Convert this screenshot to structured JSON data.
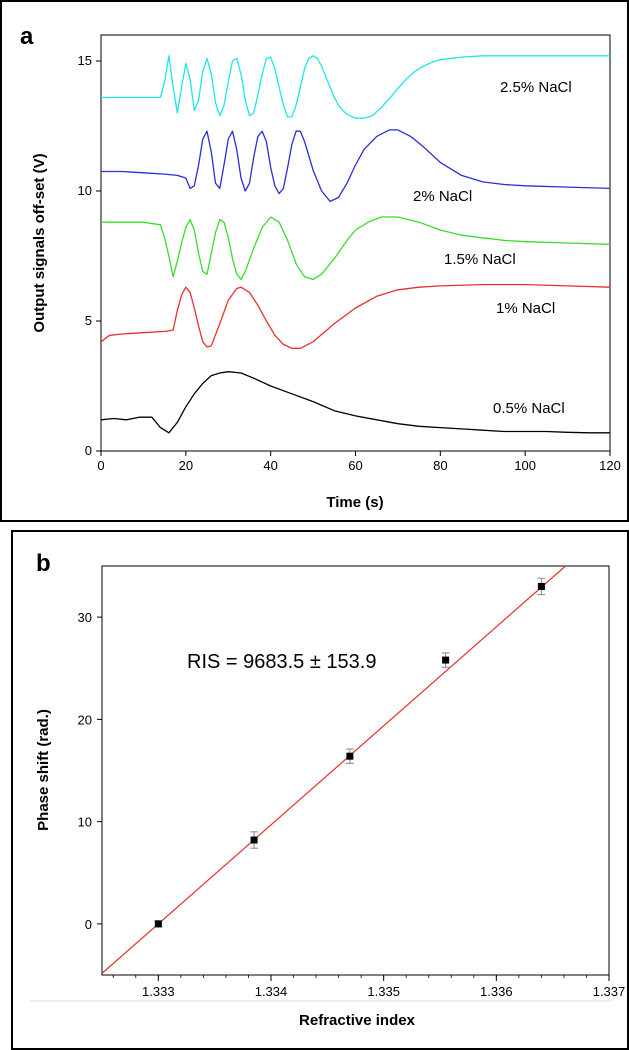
{
  "panels": [
    {
      "letter": "a"
    },
    {
      "letter": "b"
    }
  ],
  "chart_data": [
    {
      "type": "line",
      "title": "",
      "xlabel": "Time (s)",
      "ylabel": "Output signals off-set (V)",
      "xlim": [
        0,
        120
      ],
      "ylim": [
        0,
        16
      ],
      "xticks": [
        0,
        20,
        40,
        60,
        80,
        100,
        120
      ],
      "yticks": [
        0,
        5,
        10,
        15
      ],
      "grid": false,
      "series": [
        {
          "name": "0.5% NaCl",
          "color": "#000000",
          "x": [
            0,
            3,
            6,
            9,
            12,
            14,
            16,
            18,
            20,
            22,
            24,
            26,
            28,
            30,
            33,
            36,
            40,
            45,
            50,
            55,
            60,
            65,
            70,
            75,
            80,
            85,
            90,
            95,
            100,
            105,
            110,
            115,
            120
          ],
          "y": [
            1.2,
            1.25,
            1.2,
            1.3,
            1.3,
            0.9,
            0.7,
            1.1,
            1.7,
            2.2,
            2.6,
            2.9,
            3.0,
            3.05,
            3.0,
            2.8,
            2.5,
            2.2,
            1.9,
            1.55,
            1.35,
            1.2,
            1.05,
            0.95,
            0.9,
            0.85,
            0.8,
            0.75,
            0.75,
            0.75,
            0.72,
            0.7,
            0.7
          ]
        },
        {
          "name": "1% NaCl",
          "color": "#e8302c",
          "x": [
            0,
            2,
            5,
            10,
            15,
            17,
            18,
            19,
            20,
            21,
            22,
            23,
            24,
            25,
            26,
            28,
            30,
            32,
            33,
            35,
            37,
            39,
            41,
            43,
            45,
            47,
            50,
            55,
            60,
            65,
            70,
            75,
            80,
            90,
            100,
            110,
            120
          ],
          "y": [
            4.2,
            4.45,
            4.5,
            4.55,
            4.6,
            4.65,
            5.4,
            6.0,
            6.3,
            6.1,
            5.5,
            4.8,
            4.2,
            4.0,
            4.05,
            4.9,
            5.8,
            6.25,
            6.3,
            6.1,
            5.6,
            5.0,
            4.45,
            4.1,
            3.95,
            3.95,
            4.2,
            4.9,
            5.5,
            5.95,
            6.2,
            6.3,
            6.35,
            6.4,
            6.4,
            6.35,
            6.3
          ]
        },
        {
          "name": "1.5% NaCl",
          "color": "#3adc2a",
          "x": [
            0,
            5,
            10,
            14,
            15,
            16,
            17,
            18,
            19,
            20,
            21,
            22,
            23,
            24,
            25,
            26,
            27,
            28,
            29,
            30,
            31,
            32,
            33,
            34,
            36,
            38,
            40,
            42,
            44,
            46,
            48,
            50,
            52,
            55,
            58,
            60,
            63,
            66,
            70,
            75,
            80,
            85,
            90,
            95,
            100,
            110,
            120
          ],
          "y": [
            8.8,
            8.8,
            8.8,
            8.7,
            8.2,
            7.5,
            6.7,
            7.3,
            8.0,
            8.6,
            8.9,
            8.5,
            7.6,
            6.9,
            6.8,
            7.6,
            8.4,
            8.9,
            8.8,
            8.2,
            7.4,
            6.8,
            6.6,
            6.9,
            7.8,
            8.6,
            9.0,
            8.8,
            8.1,
            7.2,
            6.7,
            6.6,
            6.8,
            7.4,
            8.1,
            8.5,
            8.8,
            9.0,
            9.0,
            8.8,
            8.5,
            8.3,
            8.2,
            8.1,
            8.05,
            8.0,
            7.95
          ]
        },
        {
          "name": "2% NaCl",
          "color": "#2a2ed6",
          "x": [
            0,
            5,
            10,
            15,
            18,
            20,
            21,
            22,
            23,
            24,
            25,
            26,
            27,
            28,
            29,
            30,
            31,
            32,
            33,
            34,
            35,
            36,
            37,
            38,
            39,
            40,
            41,
            42,
            43,
            44,
            45,
            46,
            47,
            48,
            50,
            52,
            54,
            56,
            58,
            60,
            62,
            65,
            68,
            70,
            73,
            76,
            80,
            85,
            90,
            95,
            100,
            110,
            120
          ],
          "y": [
            10.75,
            10.75,
            10.7,
            10.65,
            10.6,
            10.5,
            10.1,
            10.2,
            11.0,
            12.0,
            12.3,
            11.5,
            10.3,
            10.1,
            11.0,
            12.0,
            12.3,
            11.6,
            10.5,
            10.0,
            10.3,
            11.3,
            12.1,
            12.3,
            11.9,
            10.9,
            10.2,
            9.9,
            10.1,
            10.9,
            11.8,
            12.3,
            12.3,
            11.9,
            10.8,
            10.0,
            9.6,
            9.75,
            10.3,
            11.0,
            11.6,
            12.1,
            12.35,
            12.35,
            12.1,
            11.7,
            11.1,
            10.6,
            10.35,
            10.25,
            10.2,
            10.15,
            10.1
          ]
        },
        {
          "name": "2.5% NaCl",
          "color": "#20e6e6",
          "x": [
            0,
            5,
            10,
            13,
            14,
            15,
            16,
            17,
            18,
            19,
            20,
            21,
            22,
            23,
            24,
            25,
            26,
            27,
            28,
            29,
            30,
            31,
            32,
            33,
            34,
            35,
            36,
            37,
            38,
            39,
            40,
            41,
            42,
            43,
            44,
            45,
            46,
            47,
            48,
            49,
            50,
            51,
            52,
            53,
            54,
            55,
            56,
            57,
            58,
            60,
            62,
            64,
            66,
            68,
            70,
            72,
            74,
            76,
            78,
            80,
            85,
            90,
            95,
            100,
            110,
            120
          ],
          "y": [
            13.6,
            13.6,
            13.6,
            13.6,
            13.6,
            14.2,
            15.2,
            14.0,
            13.0,
            14.0,
            14.9,
            14.3,
            13.1,
            13.5,
            14.6,
            15.1,
            14.5,
            13.4,
            12.9,
            13.3,
            14.2,
            15.0,
            15.1,
            14.5,
            13.5,
            12.9,
            13.0,
            13.7,
            14.5,
            15.1,
            15.15,
            14.7,
            14.0,
            13.3,
            12.85,
            12.85,
            13.3,
            14.0,
            14.7,
            15.1,
            15.2,
            15.1,
            14.8,
            14.4,
            14.0,
            13.6,
            13.3,
            13.1,
            12.95,
            12.8,
            12.8,
            12.9,
            13.2,
            13.55,
            13.95,
            14.3,
            14.6,
            14.8,
            14.95,
            15.05,
            15.15,
            15.2,
            15.2,
            15.2,
            15.2,
            15.2
          ]
        }
      ]
    },
    {
      "type": "scatter",
      "title": "",
      "xlabel": "Refractive index",
      "ylabel": "Phase shift (rad.)",
      "xlim": [
        1.3325,
        1.337
      ],
      "ylim": [
        -5,
        35
      ],
      "xticks": [
        "1.333",
        "1.334",
        "1.335",
        "1.336",
        "1.337"
      ],
      "yticks": [
        0,
        10,
        20,
        30
      ],
      "grid": false,
      "annotation": "RIS = 9683.5 ± 153.9",
      "points": [
        {
          "x": 1.333,
          "y": 0.0,
          "err": 0.3
        },
        {
          "x": 1.33385,
          "y": 8.2,
          "err": 0.8
        },
        {
          "x": 1.3347,
          "y": 16.4,
          "err": 0.7
        },
        {
          "x": 1.33555,
          "y": 25.8,
          "err": 0.7
        },
        {
          "x": 1.3364,
          "y": 33.0,
          "err": 0.8
        }
      ],
      "fit_line": {
        "slope": 9683.5,
        "x0": 1.333,
        "y0": 0.0,
        "color": "#e8302c"
      },
      "marker_color": "#000000",
      "errorbar_color": "#888888"
    }
  ]
}
